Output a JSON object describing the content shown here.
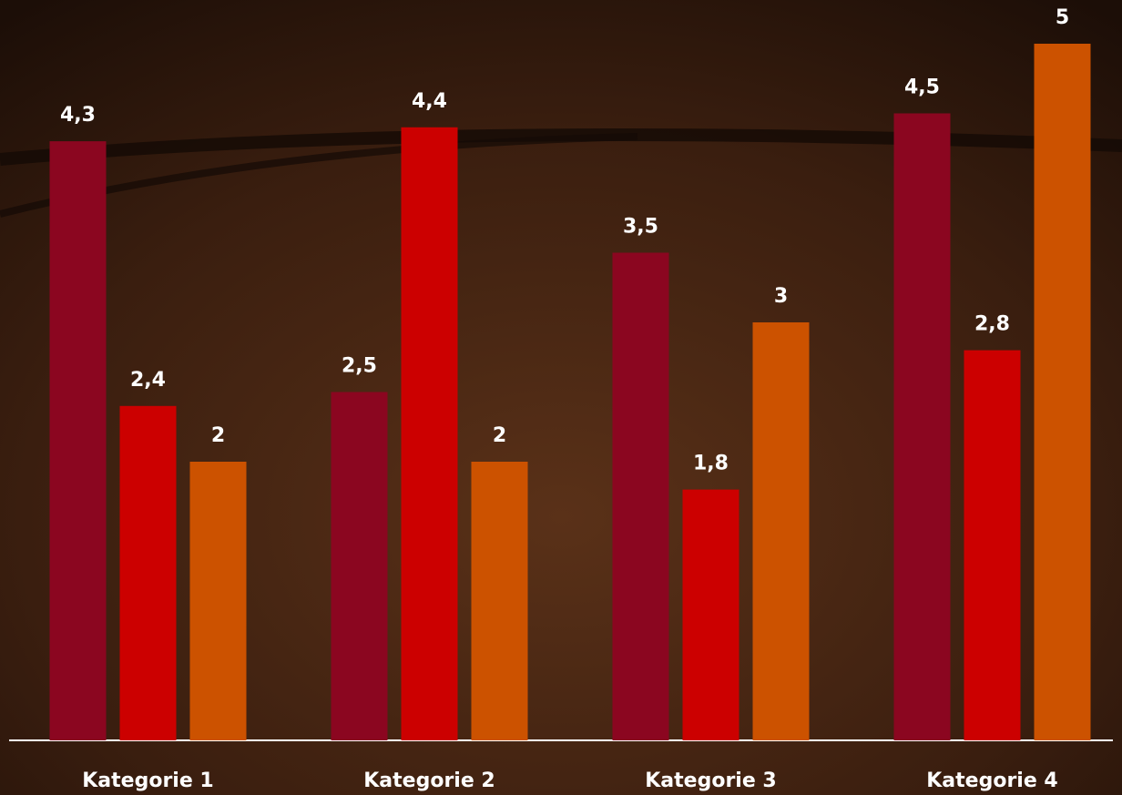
{
  "chart_data": {
    "type": "bar",
    "categories": [
      "Kategorie 1",
      "Kategorie 2",
      "Kategorie 3",
      "Kategorie 4"
    ],
    "series": [
      {
        "color": "#8b0620",
        "values": [
          4.3,
          2.5,
          3.5,
          4.5
        ],
        "value_labels": [
          "4,3",
          "2,5",
          "3,5",
          "4,5"
        ]
      },
      {
        "color": "#cc0000",
        "values": [
          2.4,
          4.4,
          1.8,
          2.8
        ],
        "value_labels": [
          "2,4",
          "4,4",
          "1,8",
          "2,8"
        ]
      },
      {
        "color": "#cc5200",
        "values": [
          2,
          2,
          3,
          5
        ],
        "value_labels": [
          "2",
          "2",
          "3",
          "5"
        ]
      }
    ],
    "ylim": [
      0,
      5
    ]
  }
}
